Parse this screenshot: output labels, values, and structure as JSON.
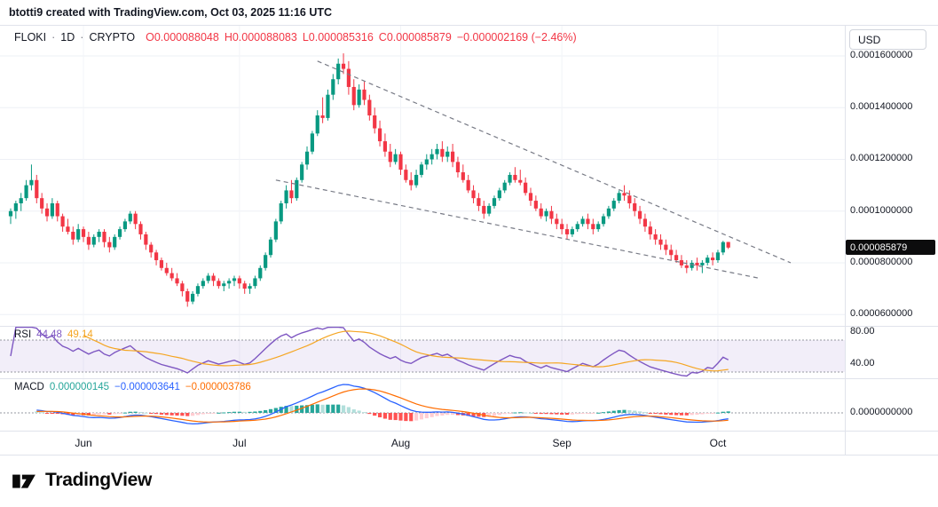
{
  "attribution": "btotti9 created with TradingView.com, Oct 03, 2025 11:16 UTC",
  "header": {
    "symbol": "FLOKI",
    "sep": "·",
    "timeframe": "1D",
    "exchange": "CRYPTO",
    "open": "O0.000088048",
    "high": "H0.000088083",
    "low": "L0.000085316",
    "close": "C0.000085879",
    "change": "−0.000002169 (−2.46%)"
  },
  "price_scale": {
    "currency": "USD",
    "labels": [
      {
        "text": "0.0001600000",
        "price": 160
      },
      {
        "text": "0.0001400000",
        "price": 140
      },
      {
        "text": "0.0001200000",
        "price": 120
      },
      {
        "text": "0.0001000000",
        "price": 100
      },
      {
        "text": "0.0000800000",
        "price": 80
      },
      {
        "text": "0.0000600000",
        "price": 60
      }
    ],
    "last_price_badge": {
      "text": "0.000085879",
      "price": 85.879
    }
  },
  "rsi_panel": {
    "label": "RSI",
    "value": "44.48",
    "ma_value": "49.14",
    "upper_band": 70,
    "lower_band": 30,
    "scale_labels": [
      {
        "text": "80.00",
        "value": 80
      },
      {
        "text": "40.00",
        "value": 40
      }
    ]
  },
  "macd_panel": {
    "label": "MACD",
    "hist_value": "0.000000145",
    "macd_value": "−0.000003641",
    "signal_value": "−0.000003786",
    "scale_labels": [
      {
        "text": "0.0000000000",
        "value": 0
      }
    ]
  },
  "time_axis": {
    "labels": [
      {
        "text": "Jun",
        "index": 14
      },
      {
        "text": "Jul",
        "index": 44
      },
      {
        "text": "Aug",
        "index": 75
      },
      {
        "text": "Sep",
        "index": 106
      },
      {
        "text": "Oct",
        "index": 136
      }
    ]
  },
  "footer": {
    "brand": "TradingView"
  },
  "colors": {
    "up": "#089981",
    "down": "#F23645",
    "text": "#131722",
    "muted_text": "#787B86",
    "grid": "#EEF0F6",
    "grid_vertical": "#F2F4F8",
    "separator": "#E0E3EB",
    "trendline": "#787B86",
    "rsi": "#7E57C2",
    "rsi_ma": "#F5A623",
    "rsi_band_fill": "rgba(126,87,194,0.10)",
    "band_line": "#9598A1",
    "macd": "#2962FF",
    "macd_signal": "#FF6D00",
    "hist_grow_above": "#26A69A",
    "hist_fall_above": "#B2DFDB",
    "hist_fall_below": "#FF5252",
    "hist_grow_below": "#FFCDD2",
    "badge_bg": "#0C0C0D",
    "badge_text": "#FFFFFF"
  },
  "chart_data": {
    "type": "candlestick",
    "title": "FLOKI / USD, 1D, CRYPTO",
    "price_unit": "values are price × 1e-6 USD",
    "ylim": [
      60,
      160
    ],
    "visible_months": [
      "Jun",
      "Jul",
      "Aug",
      "Sep",
      "Oct"
    ],
    "ohlc": [
      [
        98,
        101,
        95,
        100
      ],
      [
        100,
        104,
        97,
        103
      ],
      [
        103,
        107,
        100,
        105
      ],
      [
        105,
        112,
        104,
        110
      ],
      [
        110,
        118,
        108,
        112
      ],
      [
        112,
        114,
        103,
        105
      ],
      [
        105,
        107,
        99,
        101
      ],
      [
        101,
        103,
        96,
        98
      ],
      [
        98,
        105,
        97,
        103
      ],
      [
        103,
        104,
        96,
        98
      ],
      [
        98,
        99,
        92,
        94
      ],
      [
        94,
        97,
        91,
        92
      ],
      [
        92,
        94,
        87,
        89
      ],
      [
        89,
        95,
        88,
        93
      ],
      [
        93,
        94,
        88,
        90
      ],
      [
        90,
        92,
        85,
        87
      ],
      [
        87,
        91,
        86,
        90
      ],
      [
        90,
        93,
        88,
        92
      ],
      [
        92,
        93,
        86,
        88
      ],
      [
        88,
        90,
        84,
        86
      ],
      [
        86,
        91,
        85,
        90
      ],
      [
        90,
        94,
        89,
        93
      ],
      [
        93,
        97,
        92,
        96
      ],
      [
        96,
        100,
        95,
        99
      ],
      [
        99,
        100,
        93,
        95
      ],
      [
        95,
        96,
        89,
        91
      ],
      [
        91,
        92,
        85,
        87
      ],
      [
        87,
        88,
        82,
        84
      ],
      [
        84,
        85,
        79,
        81
      ],
      [
        81,
        82,
        77,
        78
      ],
      [
        78,
        80,
        75,
        76
      ],
      [
        76,
        78,
        73,
        74
      ],
      [
        74,
        76,
        71,
        72
      ],
      [
        72,
        73,
        67,
        69
      ],
      [
        69,
        70,
        63,
        65
      ],
      [
        65,
        69,
        64,
        68
      ],
      [
        68,
        72,
        67,
        71
      ],
      [
        71,
        74,
        70,
        73
      ],
      [
        73,
        76,
        72,
        75
      ],
      [
        75,
        76,
        71,
        73
      ],
      [
        73,
        74,
        70,
        71
      ],
      [
        71,
        73,
        69,
        72
      ],
      [
        72,
        74,
        70,
        73
      ],
      [
        73,
        75,
        71,
        74
      ],
      [
        74,
        75,
        70,
        72
      ],
      [
        72,
        73,
        68,
        70
      ],
      [
        70,
        72,
        68,
        71
      ],
      [
        71,
        75,
        70,
        74
      ],
      [
        74,
        79,
        73,
        78
      ],
      [
        78,
        84,
        77,
        83
      ],
      [
        83,
        90,
        82,
        89
      ],
      [
        89,
        97,
        88,
        96
      ],
      [
        96,
        104,
        95,
        103
      ],
      [
        103,
        110,
        101,
        108
      ],
      [
        108,
        112,
        103,
        105
      ],
      [
        105,
        113,
        104,
        112
      ],
      [
        112,
        119,
        111,
        118
      ],
      [
        118,
        125,
        116,
        123
      ],
      [
        123,
        131,
        122,
        130
      ],
      [
        130,
        139,
        129,
        137
      ],
      [
        137,
        144,
        134,
        136
      ],
      [
        136,
        147,
        135,
        145
      ],
      [
        145,
        153,
        143,
        151
      ],
      [
        151,
        159,
        149,
        157
      ],
      [
        157,
        161,
        153,
        155
      ],
      [
        155,
        158,
        145,
        148
      ],
      [
        148,
        151,
        139,
        141
      ],
      [
        141,
        149,
        140,
        147
      ],
      [
        147,
        150,
        141,
        143
      ],
      [
        143,
        145,
        135,
        137
      ],
      [
        137,
        140,
        130,
        132
      ],
      [
        132,
        135,
        125,
        127
      ],
      [
        127,
        130,
        121,
        123
      ],
      [
        123,
        126,
        117,
        119
      ],
      [
        119,
        124,
        118,
        122
      ],
      [
        122,
        123,
        114,
        116
      ],
      [
        116,
        118,
        111,
        112
      ],
      [
        112,
        115,
        108,
        110
      ],
      [
        110,
        116,
        109,
        114
      ],
      [
        114,
        119,
        113,
        118
      ],
      [
        118,
        122,
        116,
        120
      ],
      [
        120,
        124,
        118,
        122
      ],
      [
        122,
        126,
        120,
        124
      ],
      [
        124,
        127,
        119,
        121
      ],
      [
        121,
        125,
        119,
        123
      ],
      [
        123,
        126,
        117,
        119
      ],
      [
        119,
        121,
        113,
        115
      ],
      [
        115,
        118,
        111,
        112
      ],
      [
        112,
        114,
        107,
        108
      ],
      [
        108,
        110,
        103,
        105
      ],
      [
        105,
        107,
        100,
        102
      ],
      [
        102,
        104,
        97,
        99
      ],
      [
        99,
        103,
        98,
        102
      ],
      [
        102,
        106,
        101,
        105
      ],
      [
        105,
        109,
        104,
        108
      ],
      [
        108,
        112,
        107,
        111
      ],
      [
        111,
        115,
        110,
        114
      ],
      [
        114,
        117,
        111,
        112
      ],
      [
        112,
        116,
        110,
        111
      ],
      [
        111,
        113,
        106,
        107
      ],
      [
        107,
        109,
        102,
        104
      ],
      [
        104,
        106,
        100,
        101
      ],
      [
        101,
        103,
        97,
        98
      ],
      [
        98,
        101,
        96,
        100
      ],
      [
        100,
        102,
        95,
        97
      ],
      [
        97,
        99,
        93,
        95
      ],
      [
        95,
        97,
        91,
        93
      ],
      [
        93,
        95,
        89,
        91
      ],
      [
        91,
        94,
        90,
        93
      ],
      [
        93,
        96,
        92,
        95
      ],
      [
        95,
        98,
        94,
        97
      ],
      [
        97,
        99,
        93,
        95
      ],
      [
        95,
        97,
        91,
        93
      ],
      [
        93,
        96,
        92,
        95
      ],
      [
        95,
        99,
        94,
        98
      ],
      [
        98,
        102,
        97,
        101
      ],
      [
        101,
        105,
        100,
        104
      ],
      [
        104,
        108,
        103,
        107
      ],
      [
        107,
        110,
        104,
        106
      ],
      [
        106,
        108,
        101,
        103
      ],
      [
        103,
        105,
        98,
        100
      ],
      [
        100,
        102,
        95,
        97
      ],
      [
        97,
        99,
        92,
        94
      ],
      [
        94,
        96,
        89,
        91
      ],
      [
        91,
        93,
        87,
        89
      ],
      [
        89,
        91,
        85,
        87
      ],
      [
        87,
        89,
        83,
        85
      ],
      [
        85,
        87,
        81,
        83
      ],
      [
        83,
        85,
        80,
        81
      ],
      [
        81,
        83,
        78,
        79
      ],
      [
        79,
        81,
        76,
        78
      ],
      [
        78,
        81,
        77,
        80
      ],
      [
        80,
        82,
        77,
        79
      ],
      [
        79,
        81,
        76,
        80
      ],
      [
        80,
        83,
        79,
        82
      ],
      [
        82,
        84,
        79,
        81
      ],
      [
        81,
        85,
        80,
        84
      ],
      [
        84,
        88.5,
        83,
        88
      ],
      [
        88.048,
        88.083,
        85.316,
        85.879
      ]
    ],
    "trendlines": [
      {
        "from": [
          59,
          158
        ],
        "to": [
          150,
          80
        ],
        "style": "dashed"
      },
      {
        "from": [
          51,
          112
        ],
        "to": [
          144,
          74
        ],
        "style": "dashed"
      }
    ],
    "indicators": {
      "rsi": {
        "period": 14,
        "current": 44.48,
        "ma_current": 49.14
      },
      "macd": {
        "fast": 12,
        "slow": 26,
        "signal": 9,
        "current_hist": 1.45e-07,
        "current_macd": -3.641e-06,
        "current_signal": -3.786e-06
      }
    }
  }
}
